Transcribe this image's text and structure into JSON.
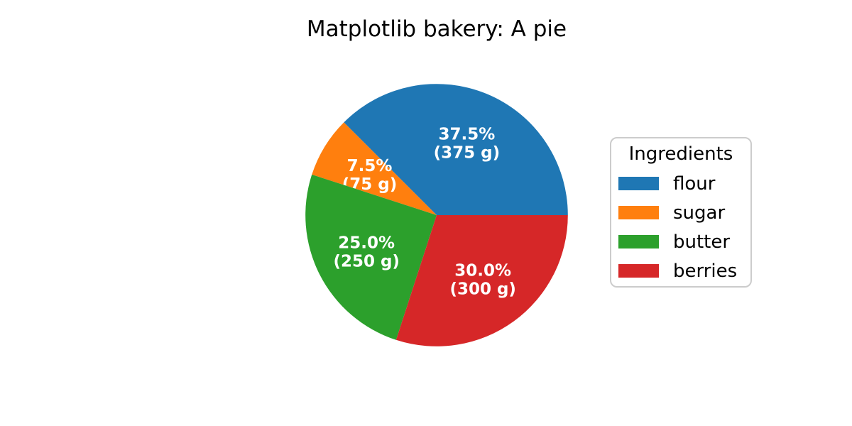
{
  "chart_data": {
    "type": "pie",
    "title": "Matplotlib bakery: A pie",
    "start_angle_deg": 0,
    "direction": "counterclockwise",
    "unit": "g",
    "total": 1000,
    "categories": [
      "flour",
      "sugar",
      "butter",
      "berries"
    ],
    "values": [
      375,
      75,
      250,
      300
    ],
    "slices": [
      {
        "name": "flour",
        "value": 375,
        "pct": 37.5,
        "pct_label": "37.5%",
        "amount_label": "(375 g)",
        "color": "#1f77b4"
      },
      {
        "name": "sugar",
        "value": 75,
        "pct": 7.5,
        "pct_label": "7.5%",
        "amount_label": "(75 g)",
        "color": "#ff7f0e"
      },
      {
        "name": "butter",
        "value": 250,
        "pct": 25.0,
        "pct_label": "25.0%",
        "amount_label": "(250 g)",
        "color": "#2ca02c"
      },
      {
        "name": "berries",
        "value": 300,
        "pct": 30.0,
        "pct_label": "30.0%",
        "amount_label": "(300 g)",
        "color": "#d62728"
      }
    ],
    "slice_label_color": "#ffffff",
    "legend": {
      "title": "Ingredients",
      "position": "center right",
      "entries": [
        "flour",
        "sugar",
        "butter",
        "berries"
      ],
      "border_color": "#cccccc",
      "background": "#ffffff"
    },
    "background": "#ffffff",
    "grid": false
  }
}
